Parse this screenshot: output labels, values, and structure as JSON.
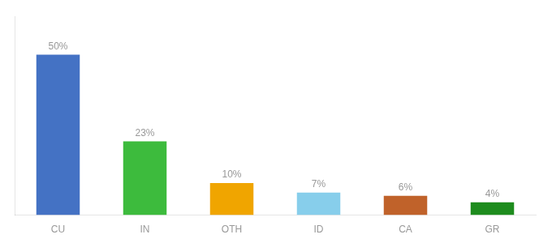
{
  "chart_data": {
    "type": "bar",
    "categories": [
      "CU",
      "IN",
      "OTH",
      "ID",
      "CA",
      "GR"
    ],
    "values": [
      50,
      23,
      10,
      7,
      6,
      4
    ],
    "value_labels": [
      "50%",
      "23%",
      "10%",
      "7%",
      "6%",
      "4%"
    ],
    "colors": [
      "#4472c4",
      "#3dbb3d",
      "#f0a500",
      "#87ceeb",
      "#c0622a",
      "#1e8c1e"
    ],
    "ylim": [
      0,
      62
    ],
    "data_labels": true,
    "tick_labels": "x",
    "grid": false
  }
}
